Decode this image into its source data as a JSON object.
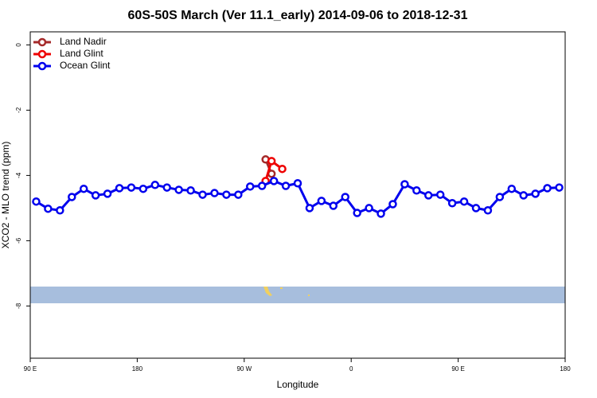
{
  "chart_data": {
    "type": "line",
    "title": "60S-50S March (Ver 11.1_early)   2014-09-06 to 2018-12-31",
    "xlabel": "Longitude",
    "ylabel": "XCO2 - MLO trend (ppm)",
    "xlim": [
      90,
      540
    ],
    "xticks": [
      {
        "value": 90,
        "label": "90 E"
      },
      180,
      {
        "value": 270,
        "label": "90 W"
      },
      {
        "value": 360,
        "label": "0"
      },
      {
        "value": 450,
        "label": "90 E"
      },
      {
        "value": 540,
        "label": "180"
      }
    ],
    "ylim": [
      -9.6,
      0.4
    ],
    "yticks": [
      0,
      -2,
      -4,
      -6,
      -8
    ],
    "legend": "top-left",
    "series": [
      {
        "name": "Land Nadir",
        "color": "#a52a2a",
        "x": [
          288,
          293
        ],
        "values": [
          -3.51,
          -3.95
        ]
      },
      {
        "name": "Land Glint",
        "color": "#ee0000",
        "x": [
          288,
          293,
          302
        ],
        "values": [
          -4.17,
          -3.56,
          -3.8
        ]
      },
      {
        "name": "Ocean Glint",
        "color": "#0000ee",
        "x": [
          95,
          105,
          115,
          125,
          135,
          145,
          155,
          165,
          175,
          185,
          195,
          205,
          215,
          225,
          235,
          245,
          255,
          265,
          275,
          285,
          295,
          305,
          315,
          325,
          335,
          345,
          355,
          365,
          375,
          385,
          395,
          405,
          415,
          425,
          435,
          445,
          455,
          465,
          475,
          485,
          495,
          505,
          515,
          525,
          535
        ],
        "values": [
          -4.8,
          -5.02,
          -5.07,
          -4.66,
          -4.41,
          -4.61,
          -4.56,
          -4.39,
          -4.37,
          -4.41,
          -4.29,
          -4.37,
          -4.44,
          -4.46,
          -4.59,
          -4.54,
          -4.59,
          -4.59,
          -4.34,
          -4.32,
          -4.17,
          -4.32,
          -4.24,
          -5.0,
          -4.78,
          -4.93,
          -4.66,
          -5.15,
          -5.0,
          -5.17,
          -4.88,
          -4.27,
          -4.46,
          -4.61,
          -4.59,
          -4.85,
          -4.8,
          -5.0,
          -5.07,
          -4.66,
          -4.41,
          -4.61,
          -4.56,
          -4.39,
          -4.37
        ]
      }
    ]
  }
}
